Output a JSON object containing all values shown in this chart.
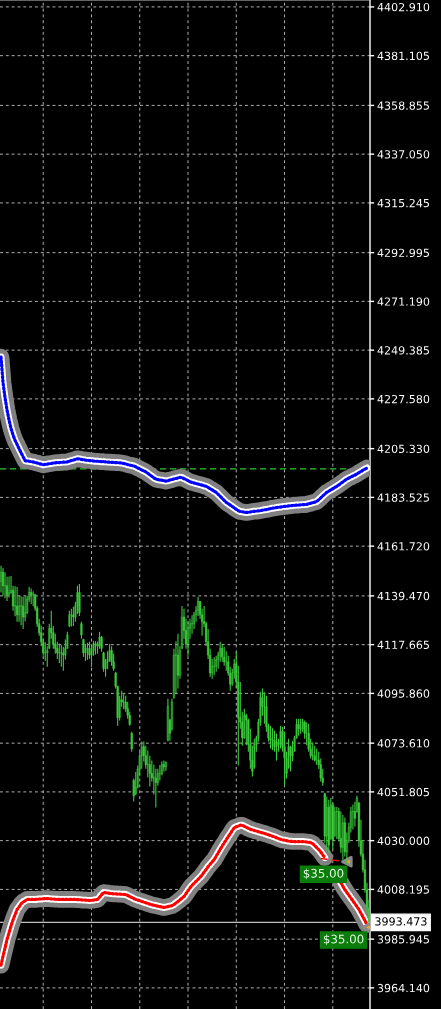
{
  "chart_data": {
    "type": "candlestick",
    "color": "#3cc83c",
    "categories": [
      null,
      null,
      null,
      null,
      null,
      null,
      null,
      null,
      null,
      null,
      null,
      null,
      null,
      null,
      null,
      null,
      null,
      null,
      null,
      null,
      null,
      null,
      null,
      null,
      null,
      null,
      null,
      null,
      null,
      null,
      null,
      null,
      null,
      null,
      null,
      null,
      null,
      null,
      null,
      null,
      null,
      null,
      null,
      null,
      null,
      null,
      null,
      null,
      null,
      null,
      null,
      null,
      null,
      null,
      null,
      null,
      null,
      null,
      null,
      null,
      null,
      null,
      null,
      null,
      null,
      null,
      null,
      null,
      null,
      null,
      null,
      null,
      null,
      null,
      null,
      null,
      null,
      null,
      null,
      null,
      null,
      null,
      null,
      null,
      null,
      null,
      null,
      null,
      null,
      null,
      null,
      null,
      null,
      null,
      null,
      null,
      null,
      null,
      null,
      null,
      null,
      null,
      null,
      null,
      null,
      null,
      null,
      null,
      null,
      null,
      null,
      null,
      null,
      null,
      null,
      null,
      null,
      null,
      null,
      null,
      null,
      null,
      null,
      null,
      null,
      null,
      null,
      null,
      null,
      null,
      null,
      null,
      null,
      null,
      null,
      null,
      null,
      null,
      null,
      null,
      null,
      null,
      null,
      null,
      null,
      null,
      null,
      null,
      null,
      null,
      null,
      null,
      null,
      null,
      null,
      null,
      null,
      null,
      null,
      null,
      null,
      null,
      null,
      null,
      null,
      null,
      null,
      null,
      null,
      null,
      null,
      null,
      null,
      null,
      null,
      null,
      null,
      null,
      null,
      null,
      null,
      null,
      null,
      null
    ],
    "ohlc": [
      [
        4146,
        4153,
        4141,
        4150
      ],
      [
        4150,
        4152,
        4139.5,
        4144
      ],
      [
        4144,
        4150,
        4138.4,
        4144
      ],
      [
        4144,
        4148,
        4137.2,
        4140
      ],
      [
        4140,
        4148.2,
        4138.8,
        4141
      ],
      [
        4141,
        4148.4,
        4140.4,
        4142
      ],
      [
        4142,
        4144,
        4132.8,
        4135
      ],
      [
        4135,
        4143.8,
        4130.4,
        4135
      ],
      [
        4135,
        4143.5,
        4127.9,
        4131
      ],
      [
        4131,
        4139.5,
        4127.9,
        4135
      ],
      [
        4135,
        4139.3,
        4126.3,
        4135
      ],
      [
        4135,
        4139,
        4124.7,
        4130
      ],
      [
        4130,
        4139.3,
        4128,
        4132
      ],
      [
        4132,
        4139.5,
        4131.4,
        4138
      ],
      [
        4138,
        4143.5,
        4136.8,
        4141
      ],
      [
        4141,
        4142.8,
        4135.8,
        4140
      ],
      [
        4140,
        4141.6,
        4134.8,
        4140
      ],
      [
        4140,
        4140.4,
        4132.8,
        4134
      ],
      [
        4134,
        4135,
        4125.6,
        4127
      ],
      [
        4127,
        4129.2,
        4121.6,
        4123
      ],
      [
        4123,
        4126.1,
        4117.1,
        4119
      ],
      [
        4119,
        4120.3,
        4112.7,
        4114
      ],
      [
        4114,
        4118.7,
        4110.3,
        4114
      ],
      [
        4114,
        4117,
        4107.8,
        4115
      ],
      [
        4116,
        4127,
        4115.8,
        4125
      ],
      [
        4125,
        4132.8,
        4120.3,
        4123
      ],
      [
        4123,
        4126,
        4115.8,
        4118
      ],
      [
        4118,
        4122.5,
        4113.6,
        4116
      ],
      [
        4116,
        4119,
        4111.3,
        4114
      ],
      [
        4114,
        4118.2,
        4109.5,
        4114
      ],
      [
        4114,
        4117.5,
        4107.8,
        4114
      ],
      [
        4114,
        4116.7,
        4106,
        4113
      ],
      [
        4113,
        4120,
        4111,
        4116
      ],
      [
        4116,
        4123.4,
        4115.8,
        4122
      ],
      [
        4126,
        4132.8,
        4125.6,
        4131
      ],
      [
        4131,
        4133.7,
        4125.8,
        4131
      ],
      [
        4131,
        4134.6,
        4126,
        4130
      ],
      [
        4130,
        4136.8,
        4127.9,
        4135
      ],
      [
        4135,
        4144,
        4131.4,
        4141
      ],
      [
        4141,
        4144.8,
        4130.5,
        4132
      ],
      [
        4127,
        4127.9,
        4120.3,
        4122
      ],
      [
        4120,
        4120.3,
        4112.2,
        4114
      ],
      [
        4114,
        4118,
        4110.4,
        4116
      ],
      [
        4116,
        4118.5,
        4110.9,
        4116
      ],
      [
        4116,
        4119,
        4111.3,
        4113
      ],
      [
        4113,
        4117,
        4107.8,
        4115
      ],
      [
        4115,
        4119.4,
        4112.7,
        4118
      ],
      [
        4118,
        4119.2,
        4113.2,
        4118
      ],
      [
        4118,
        4119,
        4113.6,
        4117
      ],
      [
        4117,
        4123.4,
        4115.8,
        4121
      ],
      [
        4121,
        4121.6,
        4114.5,
        4116
      ],
      [
        4114,
        4114.5,
        4105.5,
        4107
      ],
      [
        4107,
        4111.3,
        4103.3,
        4110
      ],
      [
        4110,
        4114.7,
        4106.7,
        4111
      ],
      [
        4111,
        4118,
        4110,
        4115
      ],
      [
        4115,
        4117,
        4108.2,
        4110
      ],
      [
        4110,
        4113.6,
        4106,
        4107
      ],
      [
        4105,
        4105.5,
        4098,
        4099
      ],
      [
        4099,
        4099.3,
        4081.4,
        4085
      ],
      [
        4085,
        4094.8,
        4083.7,
        4093
      ],
      [
        4093,
        4097,
        4089.9,
        4092
      ],
      [
        4092,
        4095.9,
        4088.8,
        4092
      ],
      [
        4092,
        4094.8,
        4087.7,
        4089
      ],
      [
        4089,
        4092.1,
        4084.5,
        4086
      ],
      [
        4086,
        4087.7,
        4081.4,
        4082
      ],
      [
        4078,
        4078.7,
        4069.8,
        4071
      ],
      [
        4057,
        4057.8,
        4047.5,
        4050
      ],
      [
        4051,
        4060.7,
        4050.4,
        4054
      ],
      [
        4054,
        4063.6,
        4053.3,
        4062
      ],
      [
        4062,
        4069.8,
        4059.1,
        4068
      ],
      [
        4068,
        4074.3,
        4062.2,
        4072
      ],
      [
        4072,
        4074.3,
        4065.4,
        4068
      ],
      [
        4068,
        4072.5,
        4062.2,
        4064
      ],
      [
        4064,
        4070.3,
        4058.2,
        4064
      ],
      [
        4064,
        4068,
        4054.2,
        4060
      ],
      [
        4060,
        4065.8,
        4056.4,
        4058
      ],
      [
        4058,
        4064,
        4050.6,
        4058
      ],
      [
        4058,
        4062.2,
        4044.8,
        4056
      ],
      [
        4056,
        4062.2,
        4054.6,
        4060
      ],
      [
        4060,
        4063.8,
        4056.9,
        4060
      ],
      [
        4060,
        4065.4,
        4059.1,
        4064
      ],
      [
        4064,
        4065.8,
        4060.9,
        4063
      ],
      [
        4063,
        4065.4,
        4061.3,
        4065
      ],
      [
        4075,
        4093.5,
        4074.3,
        4090
      ],
      [
        4084,
        4084.5,
        4074.7,
        4078
      ],
      [
        4080,
        4093.5,
        4079.2,
        4092
      ],
      [
        4094,
        4115.8,
        4093.5,
        4113
      ],
      [
        4113,
        4119.2,
        4095.8,
        4113
      ],
      [
        4113,
        4122.5,
        4098,
        4104
      ],
      [
        4104,
        4117,
        4102.4,
        4115
      ],
      [
        4116,
        4135,
        4115.8,
        4130
      ],
      [
        4130,
        4133.7,
        4120.3,
        4124
      ],
      [
        4124,
        4129.2,
        4115.8,
        4118
      ],
      [
        4118,
        4127.9,
        4112.7,
        4125
      ],
      [
        4125,
        4129.2,
        4120.3,
        4127
      ],
      [
        4127,
        4130.8,
        4122.5,
        4127
      ],
      [
        4127,
        4132.3,
        4124.7,
        4131
      ],
      [
        4131,
        4135,
        4127.9,
        4133
      ],
      [
        4133,
        4139,
        4130.5,
        4137
      ],
      [
        4137,
        4137.2,
        4129.2,
        4131
      ],
      [
        4131,
        4133.7,
        4121.6,
        4128
      ],
      [
        4128,
        4135,
        4125.6,
        4127
      ],
      [
        4127,
        4127.9,
        4117.1,
        4119
      ],
      [
        4119,
        4124.7,
        4111.3,
        4113
      ],
      [
        4113,
        4115.8,
        4103.3,
        4105
      ],
      [
        4105,
        4111.3,
        4102.4,
        4108
      ],
      [
        4108,
        4112,
        4104,
        4108
      ],
      [
        4108,
        4112.7,
        4105.5,
        4111
      ],
      [
        4111,
        4114.5,
        4106.9,
        4113
      ],
      [
        4113,
        4119,
        4110,
        4116
      ],
      [
        4116,
        4118,
        4110,
        4112
      ],
      [
        4112,
        4116.7,
        4108.2,
        4110
      ],
      [
        4110,
        4114.7,
        4106,
        4110
      ],
      [
        4110,
        4112.7,
        4103.8,
        4105
      ],
      [
        4105,
        4107.8,
        4097,
        4100
      ],
      [
        4100,
        4106.9,
        4099.3,
        4105
      ],
      [
        4105,
        4111.3,
        4102.4,
        4109
      ],
      [
        4109,
        4114.5,
        4098,
        4101
      ],
      [
        4101,
        4108.2,
        4063.6,
        4085
      ],
      [
        4085,
        4101,
        4080.1,
        4083
      ],
      [
        4083,
        4087.7,
        4072.5,
        4076
      ],
      [
        4076,
        4089,
        4075.6,
        4086
      ],
      [
        4086,
        4086.8,
        4072.7,
        4084
      ],
      [
        4084,
        4084.5,
        4069.8,
        4073
      ],
      [
        4073,
        4080.1,
        4062.2,
        4066
      ],
      [
        4066,
        4072.5,
        4058.7,
        4061
      ],
      [
        4063,
        4075.6,
        4062.2,
        4073
      ],
      [
        4073,
        4076.9,
        4069.8,
        4076
      ],
      [
        4076,
        4084.5,
        4074.3,
        4083
      ],
      [
        4083,
        4096.6,
        4081.4,
        4094
      ],
      [
        4094,
        4098,
        4085.9,
        4090
      ],
      [
        4090,
        4096.4,
        4082.3,
        4090
      ],
      [
        4090,
        4094.8,
        4078.7,
        4081
      ],
      [
        4081,
        4082.3,
        4074.3,
        4076
      ],
      [
        4076,
        4081.4,
        4071.2,
        4075
      ],
      [
        4075,
        4080.3,
        4070.5,
        4075
      ],
      [
        4075,
        4079.2,
        4069.8,
        4072
      ],
      [
        4072,
        4077.9,
        4065.8,
        4074
      ],
      [
        4074,
        4075.6,
        4069.8,
        4073
      ],
      [
        4073,
        4081.4,
        4071.2,
        4079
      ],
      [
        4079,
        4080.9,
        4069.8,
        4072
      ],
      [
        4072,
        4078.7,
        4054.6,
        4067
      ],
      [
        4067,
        4069.8,
        4057.8,
        4060
      ],
      [
        4063,
        4075.6,
        4062.2,
        4072
      ],
      [
        4072,
        4072.5,
        4060.9,
        4068
      ],
      [
        4068,
        4074.7,
        4065.4,
        4070
      ],
      [
        4070,
        4076.9,
        4069.8,
        4076
      ],
      [
        4076,
        4084.5,
        4075.6,
        4082
      ],
      [
        4082,
        4084.5,
        4076.9,
        4080
      ],
      [
        4080,
        4084.5,
        4077.8,
        4080
      ],
      [
        4080,
        4084.5,
        4078.7,
        4083
      ],
      [
        4083,
        4083.7,
        4075.6,
        4078
      ],
      [
        4078,
        4083,
        4072.7,
        4078
      ],
      [
        4078,
        4082.3,
        4069.8,
        4071
      ],
      [
        4071,
        4075.6,
        4066.7,
        4068
      ],
      [
        4068,
        4074,
        4066,
        4068
      ],
      [
        4068,
        4072.5,
        4065.4,
        4066
      ],
      [
        4066,
        4071.2,
        4063.8,
        4066
      ],
      [
        4066,
        4069.8,
        4062.2,
        4064
      ],
      [
        4064,
        4066.7,
        4056.4,
        4058
      ],
      [
        4058,
        4062.2,
        4054.6,
        4056
      ],
      [
        4051,
        4051.4,
        4029.1,
        4032
      ],
      [
        4032,
        4049.6,
        4026,
        4045
      ],
      [
        4045,
        4048.3,
        4024.6,
        4028
      ],
      [
        4031,
        4049.2,
        4030.4,
        4046
      ],
      [
        4046,
        4047,
        4026,
        4030
      ],
      [
        4032,
        4045.2,
        4031.8,
        4043
      ],
      [
        4043,
        4045,
        4030.7,
        4043
      ],
      [
        4043,
        4044.7,
        4029.6,
        4031
      ],
      [
        4031,
        4043,
        4024.6,
        4027
      ],
      [
        4027,
        4041.6,
        4021.5,
        4038
      ],
      [
        4038,
        4040.3,
        4022.9,
        4025
      ],
      [
        4025,
        4033.6,
        4019.3,
        4030
      ],
      [
        4030,
        4038,
        4029,
        4036
      ],
      [
        4036,
        4045,
        4033.6,
        4043
      ],
      [
        4043,
        4046.2,
        4035,
        4043
      ],
      [
        4043,
        4047.4,
        4036.3,
        4040
      ],
      [
        4043,
        4050.1,
        4042.5,
        4049
      ],
      [
        4047,
        4047,
        4027.3,
        4030
      ],
      [
        4030,
        4039.4,
        4022.9,
        4024
      ],
      [
        4024,
        4030.4,
        4015.7,
        4017
      ],
      [
        4017,
        4021.5,
        4006.8,
        4008
      ],
      [
        4008,
        4011.2,
        3997.9,
        4000
      ],
      [
        4000,
        4003.7,
        3993.4,
        3993.473
      ]
    ],
    "series": [
      {
        "type": "line",
        "color": "#0000ff",
        "line_style": "dotted",
        "values": [
          4246.3,
          4234.8,
          4228.1,
          4222.6,
          4218.1,
          4214.3,
          4211.4,
          4209.0,
          4207.2,
          4205.3,
          4203.5,
          4201.7,
          4199.9,
          4199.8,
          4199.7,
          4199.5,
          4199.4,
          4199.1,
          4198.9,
          4198.6,
          4198.4,
          4198.1,
          4198.3,
          4198.4,
          4198.6,
          4198.7,
          4198.9,
          4199.0,
          4199.1,
          4199.1,
          4199.2,
          4199.3,
          4199.3,
          4199.4,
          4199.7,
          4200.0,
          4200.2,
          4200.5,
          4200.8,
          4200.7,
          4200.5,
          4200.4,
          4200.2,
          4200.1,
          4200.0,
          4199.9,
          4199.8,
          4199.7,
          4199.7,
          4199.6,
          4199.5,
          4199.5,
          4199.4,
          4199.3,
          4199.3,
          4199.2,
          4199.2,
          4199.1,
          4199.1,
          4199.0,
          4198.9,
          4198.7,
          4198.5,
          4198.2,
          4198.0,
          4197.8,
          4197.6,
          4197.2,
          4196.7,
          4196.3,
          4195.8,
          4195.4,
          4194.9,
          4194.3,
          4193.6,
          4193.0,
          4192.3,
          4191.7,
          4191.5,
          4191.3,
          4191.2,
          4191.0,
          4190.8,
          4191.0,
          4191.3,
          4191.5,
          4191.8,
          4192.0,
          4192.2,
          4192.5,
          4192.4,
          4191.9,
          4191.5,
          4191.0,
          4190.5,
          4190.2,
          4190.0,
          4189.7,
          4189.5,
          4189.2,
          4189.0,
          4188.7,
          4188.5,
          4188.0,
          4187.4,
          4186.9,
          4186.3,
          4185.8,
          4184.9,
          4184.0,
          4183.1,
          4182.2,
          4181.3,
          4180.7,
          4180.1,
          4179.5,
          4178.8,
          4178.2,
          4177.6,
          4177.2,
          4177.1,
          4176.9,
          4176.8,
          4176.9,
          4177.0,
          4177.2,
          4177.3,
          4177.4,
          4177.5,
          4177.6,
          4177.8,
          4178.0,
          4178.1,
          4178.3,
          4178.5,
          4178.7,
          4178.8,
          4179.0,
          4179.1,
          4179.2,
          4179.4,
          4179.5,
          4179.6,
          4179.7,
          4179.8,
          4179.9,
          4180.0,
          4180.1,
          4180.1,
          4180.2,
          4180.3,
          4180.3,
          4180.4,
          4180.7,
          4180.9,
          4181.2,
          4181.4,
          4181.7,
          4182.5,
          4183.3,
          4184.2,
          4185.0,
          4185.8,
          4186.3,
          4186.9,
          4187.4,
          4188.0,
          4188.5,
          4189.1,
          4189.8,
          4190.4,
          4191.1,
          4191.7,
          4192.2,
          4192.6,
          4193.1,
          4193.5,
          4194.0,
          4194.6,
          4195.1,
          4195.7,
          4196.2,
          4196.7,
          null
        ]
      },
      {
        "type": "line",
        "color": "#ff0000",
        "line_style": "dotted",
        "values": [
          3974.3,
          3978.2,
          3982.0,
          3985.8,
          3988.8,
          3991.9,
          3994.6,
          3996.9,
          3999.2,
          4000.4,
          4001.7,
          4002.6,
          4003.1,
          4003.7,
          4003.7,
          4003.7,
          4003.7,
          4003.7,
          4003.8,
          4003.9,
          4003.9,
          4004.0,
          4004.1,
          4004.1,
          4004.0,
          4003.9,
          4003.9,
          4003.8,
          4003.8,
          4003.7,
          4003.7,
          4003.7,
          4003.7,
          4003.7,
          4003.7,
          4003.7,
          4003.7,
          4003.7,
          4003.6,
          4003.6,
          4003.5,
          4003.4,
          4003.4,
          4003.3,
          4003.2,
          4003.3,
          4003.4,
          4003.6,
          4003.7,
          4004.7,
          4005.8,
          4006.8,
          4006.7,
          4006.6,
          4006.4,
          4006.3,
          4006.2,
          4006.2,
          4006.1,
          4006.1,
          4006.0,
          4006.0,
          4005.9,
          4005.5,
          4005.0,
          4004.6,
          4004.1,
          4003.7,
          4003.4,
          4003.1,
          4002.8,
          4002.5,
          4002.2,
          4001.9,
          4001.6,
          4001.3,
          4001.1,
          4000.9,
          4000.7,
          4000.5,
          4000.3,
          4000.1,
          4000.3,
          4000.5,
          4000.7,
          4000.9,
          4001.4,
          4002.1,
          4002.8,
          4003.5,
          4004.3,
          4005.0,
          4006.3,
          4007.6,
          4008.9,
          4010.0,
          4010.9,
          4011.8,
          4012.7,
          4013.6,
          4014.6,
          4015.9,
          4017.1,
          4018.4,
          4019.4,
          4020.5,
          4021.5,
          4023.0,
          4024.6,
          4026.1,
          4027.6,
          4029.0,
          4030.4,
          4031.8,
          4033.1,
          4034.5,
          4035.8,
          4036.2,
          4036.5,
          4036.9,
          4036.9,
          4036.4,
          4036.0,
          4035.5,
          4035.1,
          4034.8,
          4034.5,
          4034.3,
          4034.0,
          4033.7,
          4033.5,
          4033.2,
          4032.9,
          4032.6,
          4032.3,
          4032.0,
          4031.7,
          4031.3,
          4030.9,
          4030.6,
          4030.3,
          4030.2,
          4030.0,
          4029.8,
          4029.7,
          4029.6,
          4029.6,
          4029.6,
          4029.6,
          4029.6,
          4029.6,
          4029.5,
          4029.4,
          4029.3,
          4029.1,
          4028.7,
          4027.8,
          4026.9,
          4026.0,
          4024.9,
          4023.7,
          4022.4,
          null,
          null,
          null,
          null,
          null,
          null,
          null,
          4011.2,
          4009.6,
          4008.1,
          4006.8,
          4005.6,
          4004.3,
          4003.1,
          4001.8,
          4000.5,
          3999.2,
          3997.5,
          3995.9,
          3994.2,
          3992.5,
          null
        ]
      },
      {
        "type": "line",
        "color": "#ff0000",
        "line_style": "dashed",
        "values": [
          null,
          null,
          null,
          null,
          null,
          null,
          null,
          null,
          null,
          null,
          null,
          null,
          null,
          null,
          null,
          null,
          null,
          null,
          null,
          null,
          null,
          null,
          null,
          null,
          null,
          null,
          null,
          null,
          null,
          null,
          null,
          null,
          null,
          null,
          null,
          null,
          null,
          null,
          null,
          null,
          null,
          null,
          null,
          null,
          null,
          null,
          null,
          null,
          null,
          null,
          null,
          null,
          null,
          null,
          null,
          null,
          null,
          null,
          null,
          null,
          null,
          null,
          null,
          null,
          null,
          null,
          null,
          null,
          null,
          null,
          null,
          null,
          null,
          null,
          null,
          null,
          null,
          null,
          null,
          null,
          null,
          null,
          null,
          null,
          null,
          null,
          null,
          null,
          null,
          null,
          null,
          null,
          null,
          null,
          null,
          null,
          null,
          null,
          null,
          null,
          null,
          null,
          null,
          null,
          null,
          null,
          null,
          null,
          null,
          null,
          null,
          null,
          null,
          null,
          null,
          null,
          null,
          null,
          null,
          null,
          null,
          null,
          null,
          null,
          null,
          null,
          null,
          null,
          null,
          null,
          null,
          null,
          null,
          null,
          null,
          null,
          null,
          null,
          null,
          null,
          null,
          null,
          null,
          null,
          null,
          null,
          null,
          null,
          null,
          null,
          null,
          null,
          null,
          null,
          null,
          null,
          null,
          null,
          null,
          4022.0,
          4021.9,
          4021.8,
          4021.7,
          4021.6,
          4021.5,
          4021.4,
          4021.2,
          4021.1,
          4021.0,
          4020.9,
          4020.8,
          4020.7,
          4020.6,
          null,
          null,
          null,
          null,
          null,
          null,
          null,
          null,
          null,
          null,
          null
        ]
      },
      {
        "type": "scatter",
        "color": "#e6a532",
        "marker": "triangle",
        "values": [
          null,
          null,
          null,
          null,
          null,
          null,
          null,
          null,
          null,
          null,
          null,
          null,
          null,
          null,
          null,
          null,
          null,
          null,
          null,
          null,
          null,
          null,
          null,
          null,
          null,
          null,
          null,
          null,
          null,
          null,
          null,
          null,
          null,
          null,
          null,
          null,
          null,
          null,
          null,
          null,
          null,
          null,
          null,
          null,
          null,
          null,
          null,
          null,
          null,
          null,
          null,
          null,
          null,
          null,
          null,
          null,
          null,
          null,
          null,
          null,
          null,
          null,
          null,
          null,
          null,
          null,
          null,
          null,
          null,
          null,
          null,
          null,
          null,
          null,
          null,
          null,
          null,
          null,
          null,
          null,
          null,
          null,
          null,
          null,
          null,
          null,
          null,
          null,
          null,
          null,
          null,
          null,
          null,
          null,
          null,
          null,
          null,
          null,
          null,
          null,
          null,
          null,
          null,
          null,
          null,
          null,
          null,
          null,
          null,
          null,
          null,
          null,
          null,
          null,
          null,
          null,
          null,
          null,
          null,
          null,
          null,
          null,
          null,
          null,
          null,
          null,
          null,
          null,
          null,
          null,
          null,
          null,
          null,
          null,
          null,
          null,
          null,
          null,
          null,
          null,
          null,
          null,
          null,
          null,
          null,
          null,
          null,
          null,
          null,
          null,
          null,
          null,
          null,
          null,
          null,
          null,
          null,
          null,
          null,
          null,
          null,
          null,
          null,
          null,
          null,
          null,
          null,
          null,
          null,
          null,
          null,
          null,
          4020.6,
          null,
          null,
          null,
          null,
          null,
          null,
          null,
          null,
          null,
          3991.2,
          null
        ]
      }
    ],
    "ylim": [
      3954.7,
      4406.0
    ],
    "yticks": [
      {
        "value": 3964.14,
        "label": "3964.140"
      },
      {
        "value": 3985.945,
        "label": "3985.945"
      },
      {
        "value": 4008.195,
        "label": "4008.195"
      },
      {
        "value": 4030,
        "label": "4030.000"
      },
      {
        "value": 4051.805,
        "label": "4051.805"
      },
      {
        "value": 4073.61,
        "label": "4073.610"
      },
      {
        "value": 4095.86,
        "label": "4095.860"
      },
      {
        "value": 4117.665,
        "label": "4117.665"
      },
      {
        "value": 4139.47,
        "label": "4139.470"
      },
      {
        "value": 4161.72,
        "label": "4161.720"
      },
      {
        "value": 4183.525,
        "label": "4183.525"
      },
      {
        "value": 4205.33,
        "label": "4205.330"
      },
      {
        "value": 4227.58,
        "label": "4227.580"
      },
      {
        "value": 4249.385,
        "label": "4249.385"
      },
      {
        "value": 4271.19,
        "label": "4271.190"
      },
      {
        "value": 4292.995,
        "label": "4292.995"
      },
      {
        "value": 4315.245,
        "label": "4315.245"
      },
      {
        "value": 4337.05,
        "label": "4337.050"
      },
      {
        "value": 4358.855,
        "label": "4358.855"
      },
      {
        "value": 4381.105,
        "label": "4381.105"
      },
      {
        "value": 4402.91,
        "label": "4402.910"
      }
    ],
    "grid": true,
    "tick_labels": "y",
    "ref_lines": [
      {
        "axis": "y",
        "value": 4196.3,
        "color": "#2ec82e",
        "line_style": "dashed"
      },
      {
        "axis": "y",
        "value": 3993.473,
        "label": "3993.473",
        "color": "#c0c0c0",
        "line_style": "solid"
      }
    ],
    "annotations": [
      "$35.00",
      "$35.00"
    ]
  }
}
